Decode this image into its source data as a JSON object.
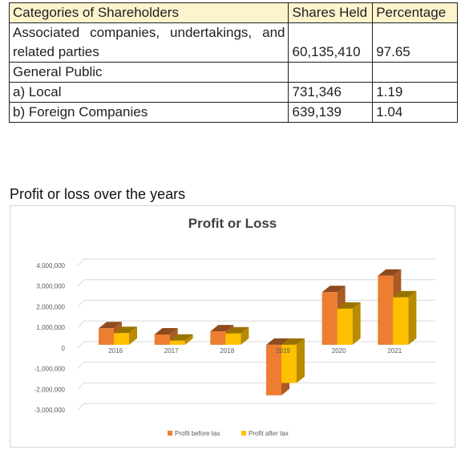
{
  "table": {
    "headers": [
      "Categories of Shareholders",
      "Shares Held",
      "Percentage"
    ],
    "rows": [
      {
        "category": "Associated companies, undertakings, and related parties",
        "shares": "60,135,410",
        "percentage": "97.65"
      },
      {
        "category": "General Public",
        "shares": "",
        "percentage": ""
      },
      {
        "category": "a) Local",
        "shares": "731,346",
        "percentage": "1.19"
      },
      {
        "category": "b) Foreign Companies",
        "shares": "639,139",
        "percentage": "1.04"
      }
    ]
  },
  "section_heading": "Profit or loss over the years",
  "chart_data": {
    "type": "bar",
    "title": "Profit or Loss",
    "categories": [
      "2016",
      "2017",
      "2018",
      "2019",
      "2020",
      "2021"
    ],
    "series": [
      {
        "name": "Profit before tax",
        "color": "#ed7d31",
        "values": [
          800000,
          500000,
          650000,
          -2450000,
          2550000,
          3350000
        ]
      },
      {
        "name": "Profit after tax",
        "color": "#ffc000",
        "values": [
          570000,
          200000,
          550000,
          -1850000,
          1750000,
          2300000
        ]
      }
    ],
    "ylim": [
      -3000000,
      4000000
    ],
    "yticks": [
      "4,000,000",
      "3,000,000",
      "2,000,000",
      "1,000,000",
      "0",
      "-1,000,000",
      "-2,000,000",
      "-3,000,000"
    ],
    "grid": true,
    "legend_position": "bottom",
    "style": "3d-clustered-column"
  }
}
